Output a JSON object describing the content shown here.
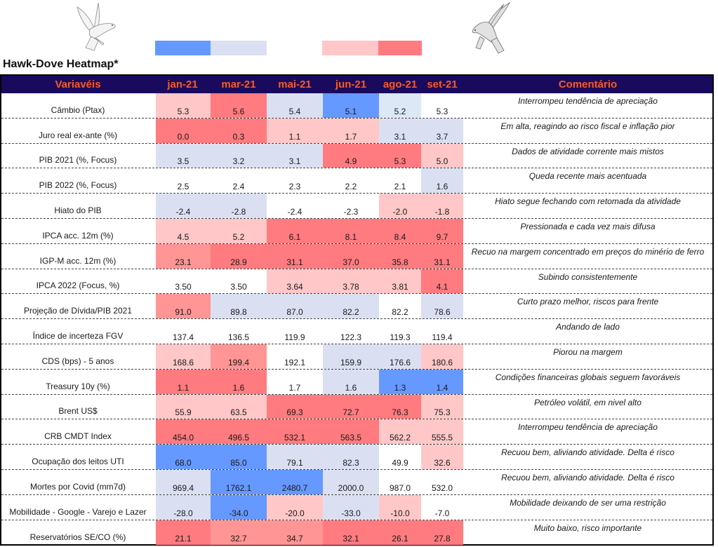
{
  "title": "Hawk-Dove Heatmap*",
  "icons": {
    "dove": "dove-icon",
    "hawk": "hawk-icon"
  },
  "legend": {
    "colors": [
      "#6699FF",
      "#DAE0F2",
      "#FFFFFF",
      "#FFC7C7",
      "#FF7B7F"
    ],
    "labels": [
      "dovish-strong",
      "dovish",
      "neutral",
      "hawkish",
      "hawkish-strong"
    ]
  },
  "palette": {
    "B": "#6699FF",
    "b": "#DAE0F2",
    "c": "#DCE8F5",
    "n": "#FFFFFF",
    "p": "#FFC7C7",
    "m": "#FF9595",
    "R": "#FF7B7F"
  },
  "header": {
    "variables": "Variavéis",
    "months": [
      "jan-21",
      "mar-21",
      "mai-21",
      "jun-21",
      "ago-21",
      "set-21"
    ],
    "comment": "Comentário"
  },
  "rows": [
    {
      "label": "Câmbio (Ptax)",
      "values": [
        "5.3",
        "5.6",
        "5.4",
        "5.1",
        "5.2",
        "5.3"
      ],
      "colors": [
        "p",
        "R",
        "b",
        "B",
        "c",
        "n"
      ],
      "comment": "Interrompeu tendência de apreciação"
    },
    {
      "label": "Juro real ex-ante (%)",
      "values": [
        "0.0",
        "0.3",
        "1.1",
        "1.7",
        "3.1",
        "3.7"
      ],
      "colors": [
        "R",
        "R",
        "p",
        "p",
        "b",
        "b"
      ],
      "comment": "Em alta, reagindo ao risco fiscal e inflação pior"
    },
    {
      "label": "PIB 2021 (%, Focus)",
      "values": [
        "3.5",
        "3.2",
        "3.1",
        "4.9",
        "5.3",
        "5.0"
      ],
      "colors": [
        "b",
        "b",
        "b",
        "R",
        "R",
        "p"
      ],
      "comment": "Dados de atividade corrente mais mistos"
    },
    {
      "label": "PIB 2022 (%, Focus)",
      "values": [
        "2.5",
        "2.4",
        "2.3",
        "2.2",
        "2.1",
        "1.6"
      ],
      "colors": [
        "n",
        "n",
        "n",
        "n",
        "n",
        "b"
      ],
      "comment": "Queda recente mais acentuada"
    },
    {
      "label": "Hiato do PIB",
      "values": [
        "-2.4",
        "-2.8",
        "-2.4",
        "-2.3",
        "-2.0",
        "-1.8"
      ],
      "colors": [
        "b",
        "b",
        "n",
        "n",
        "p",
        "p"
      ],
      "comment": "Hiato segue fechando com retomada da atividade"
    },
    {
      "label": "IPCA acc. 12m (%)",
      "values": [
        "4.5",
        "5.2",
        "6.1",
        "8.1",
        "8.4",
        "9.7"
      ],
      "colors": [
        "p",
        "p",
        "R",
        "R",
        "R",
        "R"
      ],
      "comment": "Pressionada e cada vez mais difusa"
    },
    {
      "label": "IGP-M acc. 12m (%)",
      "values": [
        "23.1",
        "28.9",
        "31.1",
        "37.0",
        "35.8",
        "31.1"
      ],
      "colors": [
        "m",
        "R",
        "R",
        "R",
        "R",
        "R"
      ],
      "comment": "Recuo na margem concentrado em preços do minério de ferro"
    },
    {
      "label": "IPCA 2022 (Focus, %)",
      "values": [
        "3.50",
        "3.50",
        "3.64",
        "3.78",
        "3.81",
        "4.1"
      ],
      "colors": [
        "n",
        "n",
        "p",
        "p",
        "p",
        "R"
      ],
      "comment": "Subindo consistentemente"
    },
    {
      "label": "Projeção de Dívida/PIB 2021",
      "values": [
        "91.0",
        "89.8",
        "87.0",
        "82.2",
        "82.2",
        "78.6"
      ],
      "colors": [
        "m",
        "b",
        "b",
        "b",
        "n",
        "b"
      ],
      "comment": "Curto prazo melhor, riscos para frente"
    },
    {
      "label": "Índice de incerteza FGV",
      "values": [
        "137.4",
        "136.5",
        "119.9",
        "122.3",
        "119.3",
        "119.4"
      ],
      "colors": [
        "n",
        "n",
        "n",
        "n",
        "n",
        "n"
      ],
      "comment": "Andando de lado"
    },
    {
      "label": "CDS (bps) - 5 anos",
      "values": [
        "168.6",
        "199.4",
        "192.1",
        "159.9",
        "176.6",
        "180.6"
      ],
      "colors": [
        "p",
        "m",
        "n",
        "b",
        "b",
        "p"
      ],
      "comment": "Piorou na margem"
    },
    {
      "label": "Treasury 10y (%)",
      "values": [
        "1.1",
        "1.6",
        "1.7",
        "1.6",
        "1.3",
        "1.4"
      ],
      "colors": [
        "R",
        "R",
        "n",
        "b",
        "B",
        "B"
      ],
      "comment": "Condições financeiras globais seguem favoráveis"
    },
    {
      "label": "Brent US$",
      "values": [
        "55.9",
        "63.5",
        "69.3",
        "72.7",
        "76.3",
        "75.3"
      ],
      "colors": [
        "p",
        "p",
        "R",
        "R",
        "R",
        "p"
      ],
      "comment": "Petróleo volátil, em nivel alto"
    },
    {
      "label": "CRB CMDT Index",
      "values": [
        "454.0",
        "496.5",
        "532.1",
        "563.5",
        "562.2",
        "555.5"
      ],
      "colors": [
        "R",
        "R",
        "R",
        "R",
        "p",
        "p"
      ],
      "comment": "Interrompeu tendência de apreciação"
    },
    {
      "label": "Ocupação dos leitos UTI",
      "values": [
        "68.0",
        "85.0",
        "79.1",
        "82.3",
        "49.9",
        "32.6"
      ],
      "colors": [
        "B",
        "B",
        "b",
        "b",
        "n",
        "p"
      ],
      "comment": "Recuou bem, aliviando atividade. Delta é risco"
    },
    {
      "label": "Mortes por Covid (mm7d)",
      "values": [
        "969.4",
        "1762.1",
        "2480.7",
        "2000.0",
        "987.0",
        "532.0"
      ],
      "colors": [
        "b",
        "B",
        "B",
        "b",
        "n",
        "n"
      ],
      "comment": "Recuou bem, aliviando atividade. Delta é risco"
    },
    {
      "label": "Mobilidade - Google - Varejo e Lazer",
      "values": [
        "-28.0",
        "-34.0",
        "-20.0",
        "-33.0",
        "-10.0",
        "-7.0"
      ],
      "colors": [
        "b",
        "B",
        "p",
        "b",
        "p",
        "n"
      ],
      "comment": "Mobilidade deixando de ser uma restrição"
    },
    {
      "label": "Reservatórios SE/CO (%)",
      "values": [
        "21.1",
        "32.7",
        "34.7",
        "32.1",
        "26.1",
        "27.8"
      ],
      "colors": [
        "R",
        "m",
        "m",
        "R",
        "R",
        "R"
      ],
      "comment": "Muito baixo, risco importante"
    }
  ]
}
